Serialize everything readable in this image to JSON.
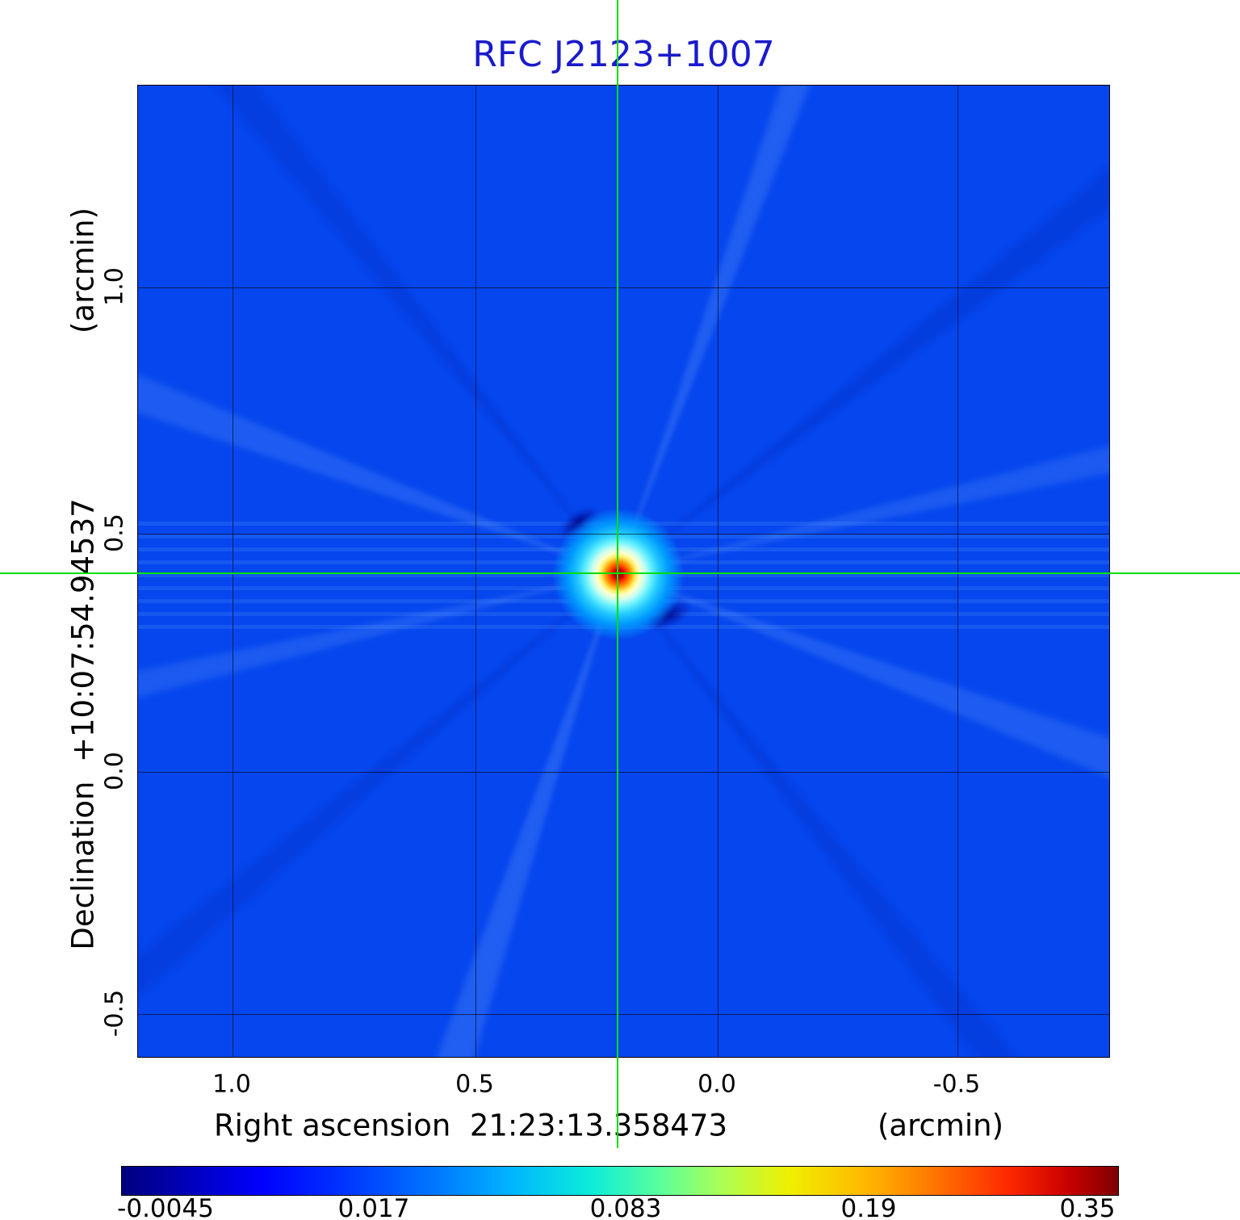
{
  "title": "RFC J2123+1007",
  "axes": {
    "y_unit": "(arcmin)",
    "y_label": "Declination  +10:07:54.94537",
    "x_label": "Right ascension  21:23:13.358473",
    "x_unit": "(arcmin)",
    "x_ticks": [
      "1.0",
      "0.5",
      "0.0",
      "-0.5"
    ],
    "y_ticks": [
      "1.0",
      "0.5",
      "0.0",
      "-0.5"
    ]
  },
  "colorbar": {
    "ticks": [
      "-0.0045",
      "0.017",
      "0.083",
      "0.19",
      "0.35"
    ]
  },
  "colors": {
    "title_text": "#1a1acd",
    "sky_background": "#0546ee",
    "crosshair": "#00e000",
    "peak_core": "#8b0000",
    "grid": "#000000"
  },
  "chart_data": {
    "type": "heatmap",
    "title": "RFC J2123+1007",
    "xlabel": "Right ascension 21:23:13.358473 (arcmin)",
    "ylabel": "Declination +10:07:54.94537 (arcmin)",
    "xlim": [
      1.19,
      -0.82
    ],
    "ylim": [
      -0.59,
      1.42
    ],
    "x_ticks": [
      1.0,
      0.5,
      0.0,
      -0.5
    ],
    "y_ticks": [
      1.0,
      0.5,
      0.0,
      -0.5
    ],
    "grid": true,
    "colormap": "jet",
    "scale": "nonlinear",
    "colorbar_ticks": [
      -0.0045,
      0.017,
      0.083,
      0.19,
      0.35
    ],
    "intensity_range": [
      -0.0045,
      0.35
    ],
    "background_level": 0.0,
    "source_peak": {
      "x_arcmin": 0.2,
      "y_arcmin": 0.42,
      "value": 0.35
    },
    "crosshair_marker": {
      "x_arcmin": 0.2,
      "y_arcmin": 0.42,
      "color": "#00e000"
    }
  }
}
